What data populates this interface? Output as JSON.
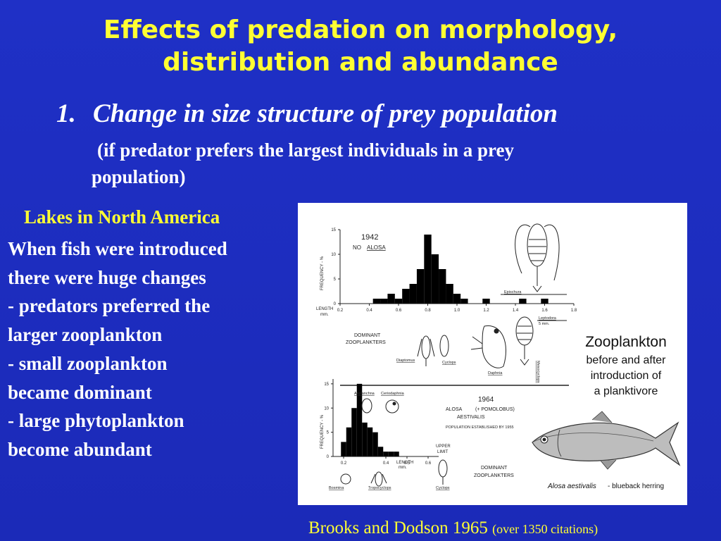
{
  "title_line1": "Effects of predation on morphology,",
  "title_line2": "distribution and abundance",
  "subhead_number": "1.",
  "subhead_text": "Change in size structure of prey population",
  "paren_line1": "(if predator prefers the largest individuals in a prey",
  "paren_line2": "population)",
  "lakes_heading": "Lakes in North America",
  "body_lines": [
    "When fish were introduced",
    "there were huge changes",
    "- predators preferred the",
    "larger zooplankton",
    "- small zooplankton",
    "became  dominant",
    "- large phytoplankton",
    "become abundant"
  ],
  "citation_main": "Brooks and Dodson 1965",
  "citation_small": "(over 1350 citations)",
  "figure": {
    "caption_line1": "Zooplankton",
    "caption_line2": "before and after",
    "caption_line3": "introduction of",
    "caption_line4": "a planktivore",
    "fish_caption_species": "Alosa aestivalis",
    "fish_caption_common": " - blueback herring",
    "top_year": "1942",
    "top_label_no": "NO",
    "top_label_alosa": "ALOSA",
    "bottom_year": "1964",
    "bottom_label_alosa": "ALOSA",
    "bottom_label_pomolobus": "(+ POMOLOBUS)",
    "bottom_label_aestivalis": "AESTIVALIS",
    "bottom_label_established": "POPULATION ESTABLISHED BY 1955",
    "upper_limit_1": "UPPER",
    "upper_limit_2": "LIMIT",
    "dominant_1": "DOMINANT",
    "dominant_2": "ZOOPLANKTERS",
    "length_label": "LENGTH",
    "length_unit": "mm.",
    "scale_bar": "5 mm.",
    "species_top": [
      "Diaptomus",
      "Cyclops",
      "Daphnia",
      "Mesocyclops",
      "Epischura",
      "Leptodora"
    ],
    "species_bottom": [
      "Asplanchna",
      "Ceriodaphnia",
      "Bosmina",
      "Tropocyclops",
      "Cyclops"
    ],
    "icons": [
      "plankton-drawing-icon",
      "herring-fish-icon"
    ]
  },
  "colors": {
    "background": "#1f2fc3",
    "title": "#ffff33",
    "text": "#ffffff",
    "bars": "#000000"
  },
  "chart_data": [
    {
      "type": "bar",
      "title": "1942",
      "xlabel": "LENGTH mm.",
      "ylabel": "FREQUENCY - %",
      "x_ticks": [
        "0.2",
        "0.4",
        "0.6",
        "0.8",
        "1.0",
        "1.2",
        "1.4",
        "1.6",
        "1.8"
      ],
      "y_ticks": [
        "0",
        "5",
        "10",
        "15"
      ],
      "xlim": [
        0.2,
        1.8
      ],
      "ylim": [
        0,
        15
      ],
      "bin_width": 0.05,
      "bins": [
        {
          "x": 0.45,
          "y": 1
        },
        {
          "x": 0.5,
          "y": 1
        },
        {
          "x": 0.55,
          "y": 2
        },
        {
          "x": 0.6,
          "y": 1
        },
        {
          "x": 0.65,
          "y": 3
        },
        {
          "x": 0.7,
          "y": 4
        },
        {
          "x": 0.75,
          "y": 7
        },
        {
          "x": 0.8,
          "y": 14
        },
        {
          "x": 0.85,
          "y": 10
        },
        {
          "x": 0.9,
          "y": 7
        },
        {
          "x": 0.95,
          "y": 4
        },
        {
          "x": 1.0,
          "y": 2
        },
        {
          "x": 1.05,
          "y": 1
        },
        {
          "x": 1.2,
          "y": 1
        },
        {
          "x": 1.45,
          "y": 1
        },
        {
          "x": 1.6,
          "y": 1
        }
      ]
    },
    {
      "type": "bar",
      "title": "1964",
      "xlabel": "LENGTH mm.",
      "ylabel": "FREQUENCY - %",
      "x_ticks": [
        "0.2",
        "0.4",
        "0.5",
        "0.6"
      ],
      "y_ticks": [
        "0",
        "5",
        "10",
        "15"
      ],
      "xlim": [
        0.15,
        0.65
      ],
      "ylim": [
        0,
        16
      ],
      "bin_width": 0.025,
      "bins": [
        {
          "x": 0.2,
          "y": 3
        },
        {
          "x": 0.225,
          "y": 6
        },
        {
          "x": 0.25,
          "y": 10
        },
        {
          "x": 0.275,
          "y": 15
        },
        {
          "x": 0.3,
          "y": 7
        },
        {
          "x": 0.325,
          "y": 6
        },
        {
          "x": 0.35,
          "y": 5
        },
        {
          "x": 0.375,
          "y": 2
        },
        {
          "x": 0.4,
          "y": 1
        },
        {
          "x": 0.425,
          "y": 1
        },
        {
          "x": 0.45,
          "y": 1
        }
      ]
    }
  ]
}
